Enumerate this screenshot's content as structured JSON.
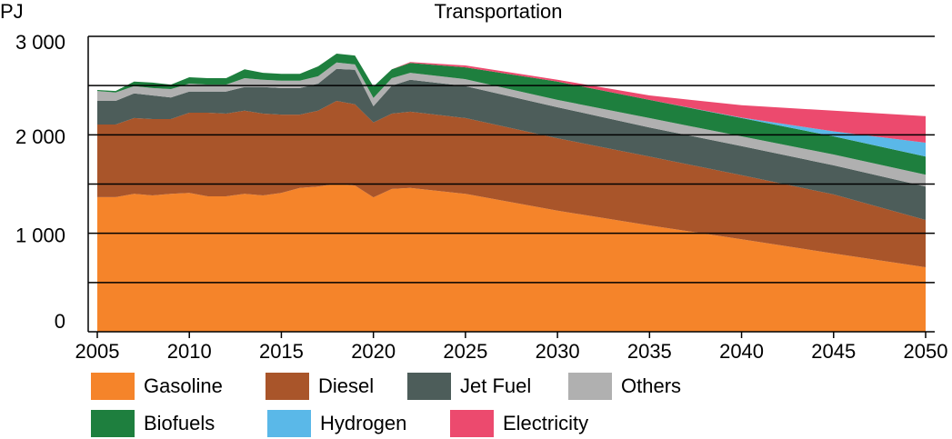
{
  "chart_data": {
    "type": "stacked-area",
    "title": "Transportation",
    "y_label": "PJ",
    "x": [
      2005,
      2006,
      2007,
      2008,
      2009,
      2010,
      2011,
      2012,
      2013,
      2014,
      2015,
      2016,
      2017,
      2018,
      2019,
      2020,
      2021,
      2022,
      2025,
      2030,
      2035,
      2040,
      2045,
      2050
    ],
    "xlim": [
      2005,
      2050
    ],
    "xticks": [
      2005,
      2010,
      2015,
      2020,
      2025,
      2030,
      2035,
      2040,
      2045,
      2050
    ],
    "ylim": [
      0,
      3000
    ],
    "yticks": [
      0,
      {
        "value": 1000,
        "label": "1 000"
      },
      {
        "value": 2000,
        "label": "2 000"
      },
      {
        "value": 3000,
        "label": "3 000"
      }
    ],
    "grid": [
      500,
      1000,
      1500,
      2000,
      2500,
      3000
    ],
    "series": [
      {
        "name": "Gasoline",
        "color": "#f5842a",
        "values": [
          1367,
          1367,
          1400,
          1385,
          1400,
          1410,
          1375,
          1375,
          1400,
          1385,
          1410,
          1460,
          1475,
          1505,
          1485,
          1365,
          1450,
          1460,
          1400,
          1230,
          1080,
          940,
          795,
          655
        ]
      },
      {
        "name": "Diesel",
        "color": "#a9552a",
        "values": [
          738,
          738,
          770,
          775,
          760,
          815,
          850,
          840,
          845,
          830,
          795,
          745,
          770,
          840,
          825,
          760,
          765,
          775,
          770,
          735,
          700,
          650,
          600,
          480
        ]
      },
      {
        "name": "Jet Fuel",
        "color": "#4d5d5a",
        "values": [
          240,
          240,
          250,
          240,
          220,
          215,
          215,
          225,
          240,
          270,
          270,
          270,
          275,
          325,
          350,
          165,
          285,
          325,
          325,
          315,
          295,
          295,
          295,
          340
        ]
      },
      {
        "name": "Others",
        "color": "#b0b0b0",
        "values": [
          100,
          85,
          75,
          75,
          85,
          80,
          70,
          70,
          90,
          75,
          75,
          75,
          75,
          65,
          55,
          85,
          75,
          70,
          70,
          75,
          95,
          100,
          110,
          120
        ]
      },
      {
        "name": "Biofuels",
        "color": "#1e7f3e",
        "values": [
          10,
          15,
          45,
          55,
          45,
          65,
          65,
          65,
          90,
          70,
          70,
          70,
          100,
          90,
          90,
          115,
          90,
          100,
          120,
          185,
          185,
          185,
          185,
          185
        ]
      },
      {
        "name": "Hydrogen",
        "color": "#5ab8e8",
        "values": [
          0,
          0,
          0,
          0,
          0,
          0,
          0,
          0,
          0,
          0,
          0,
          0,
          0,
          0,
          0,
          0,
          0,
          0,
          0,
          0,
          0,
          5,
          50,
          140
        ]
      },
      {
        "name": "Electricity",
        "color": "#ec4a6e",
        "values": [
          0,
          0,
          0,
          0,
          0,
          0,
          0,
          0,
          0,
          0,
          0,
          0,
          0,
          0,
          0,
          0,
          0,
          10,
          20,
          20,
          45,
          125,
          210,
          270
        ]
      }
    ]
  }
}
